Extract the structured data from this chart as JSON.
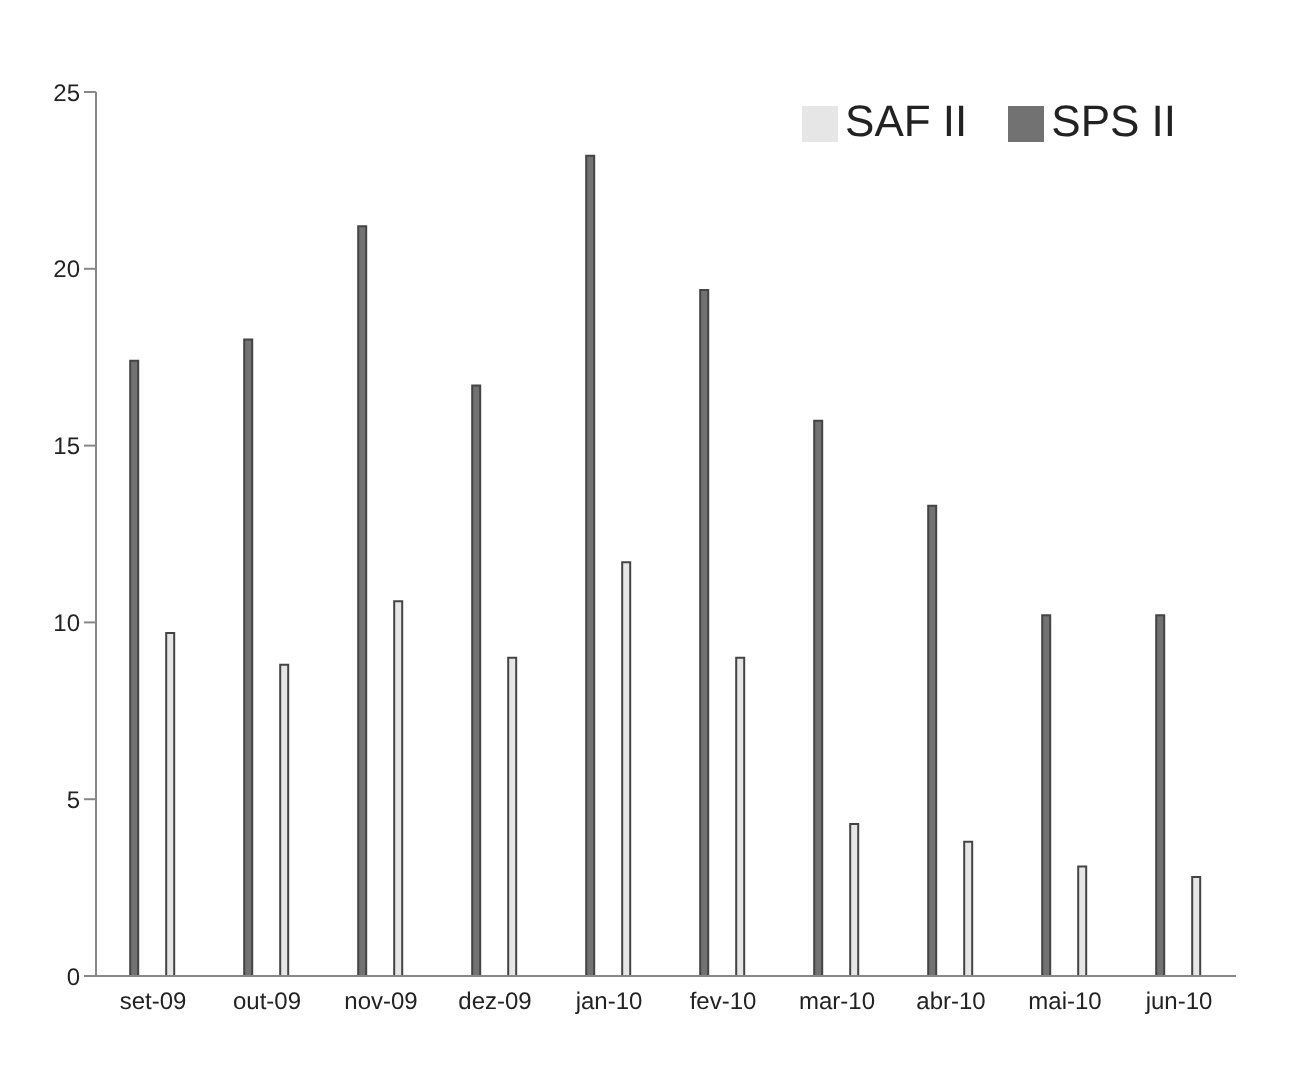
{
  "chart_data": {
    "type": "bar",
    "categories": [
      "set-09",
      "out-09",
      "nov-09",
      "dez-09",
      "jan-10",
      "fev-10",
      "mar-10",
      "abr-10",
      "mai-10",
      "jun-10"
    ],
    "series": [
      {
        "name": "SPS II",
        "color": "#727272",
        "values": [
          17.4,
          18.0,
          21.2,
          16.7,
          23.2,
          19.4,
          15.7,
          13.3,
          10.2,
          10.2
        ]
      },
      {
        "name": "SAF II",
        "color": "#e6e6e6",
        "values": [
          9.7,
          8.8,
          10.6,
          9.0,
          11.7,
          9.0,
          4.3,
          3.8,
          3.1,
          2.8
        ]
      }
    ],
    "ylim": [
      0,
      25
    ],
    "yticks": [
      0,
      5,
      10,
      15,
      20,
      25
    ],
    "grid": false,
    "legend": "top right"
  }
}
